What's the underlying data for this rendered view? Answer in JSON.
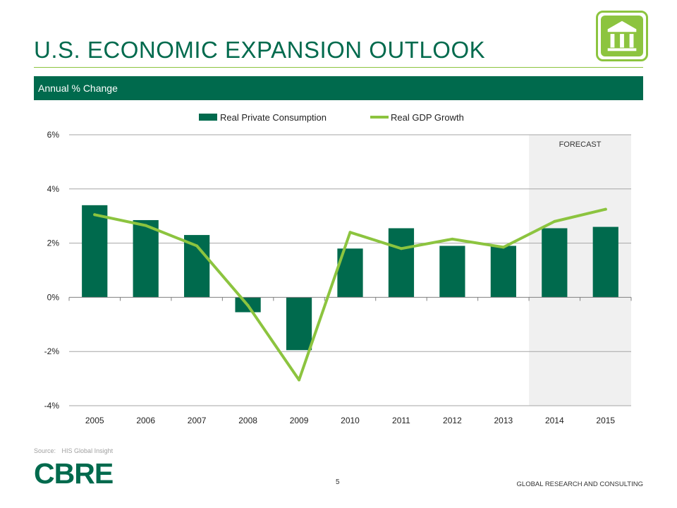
{
  "slide": {
    "title": "U.S. ECONOMIC EXPANSION OUTLOOK",
    "banner": "Annual % Change",
    "source_label": "Source:",
    "source_value": "HIS Global Insight",
    "logo": "CBRE",
    "page_number": "5",
    "footer": "GLOBAL RESEARCH AND CONSULTING",
    "icon": "building-columns-icon"
  },
  "colors": {
    "brand_green": "#006a4d",
    "accent_green": "#8cc43f",
    "forecast_shade": "#f0f0f0"
  },
  "chart_data": {
    "type": "bar",
    "categories": [
      "2005",
      "2006",
      "2007",
      "2008",
      "2009",
      "2010",
      "2011",
      "2012",
      "2013",
      "2014",
      "2015"
    ],
    "series": [
      {
        "name": "Real Private Consumption",
        "type": "bar",
        "values": [
          3.4,
          2.85,
          2.3,
          -0.55,
          -1.95,
          1.8,
          2.55,
          1.9,
          1.9,
          2.55,
          2.6
        ]
      },
      {
        "name": "Real GDP Growth",
        "type": "line",
        "values": [
          3.05,
          2.65,
          1.9,
          -0.3,
          -3.05,
          2.4,
          1.8,
          2.15,
          1.85,
          2.8,
          3.25
        ]
      }
    ],
    "ylim": [
      -4,
      6
    ],
    "yticks": [
      6,
      4,
      2,
      0,
      -2,
      -4
    ],
    "ytick_labels": [
      "6%",
      "4%",
      "2%",
      "0%",
      "-2%",
      "-4%"
    ],
    "forecast_label": "FORECAST",
    "forecast_categories": [
      "2014",
      "2015"
    ],
    "legend_position": "top-center",
    "grid": true
  }
}
